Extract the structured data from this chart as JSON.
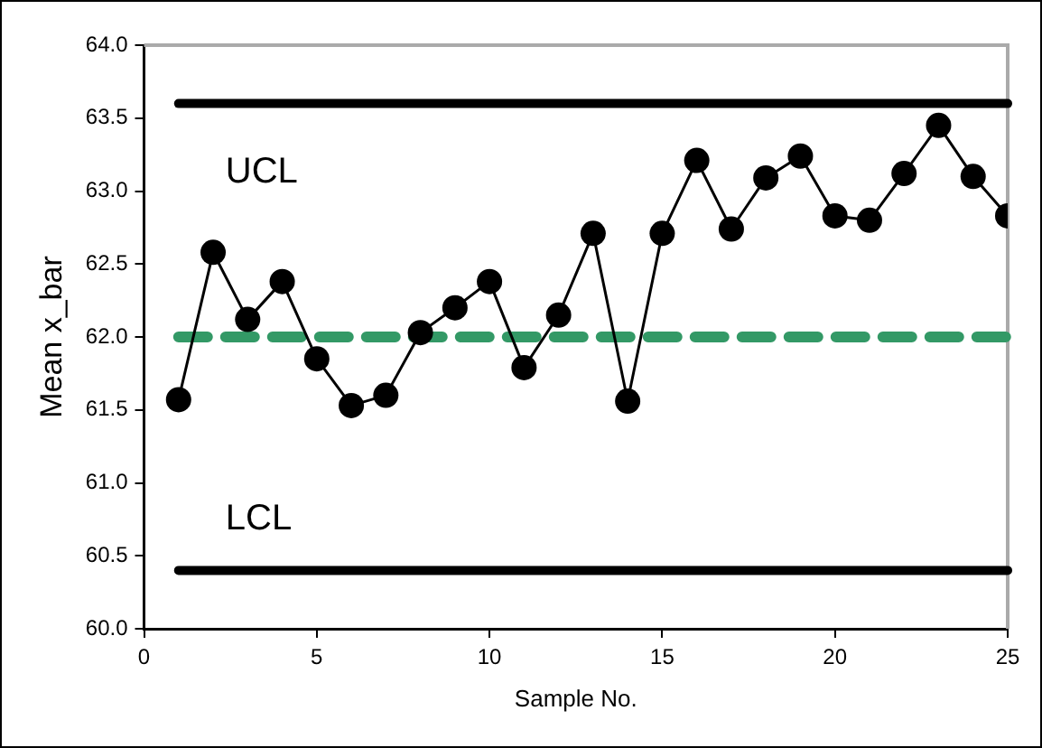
{
  "chart_data": {
    "type": "line",
    "xlabel": "Sample No.",
    "ylabel": "Mean x_bar",
    "x": [
      1,
      2,
      3,
      4,
      5,
      6,
      7,
      8,
      9,
      10,
      11,
      12,
      13,
      14,
      15,
      16,
      17,
      18,
      19,
      20,
      21,
      22,
      23,
      24,
      25
    ],
    "series": [
      {
        "color": "#000000",
        "values": [
          61.57,
          62.58,
          62.12,
          62.38,
          61.85,
          61.53,
          61.6,
          62.03,
          62.2,
          62.38,
          61.79,
          62.15,
          62.71,
          61.56,
          62.71,
          63.21,
          62.74,
          63.09,
          63.24,
          62.83,
          62.8,
          63.12,
          63.45,
          63.1,
          62.83
        ]
      }
    ],
    "xlim": [
      0,
      25
    ],
    "xticks": [
      0,
      5,
      10,
      15,
      20,
      25
    ],
    "ylim": [
      60,
      64
    ],
    "yticks": [
      {
        "value": 60,
        "label": "60.0"
      },
      {
        "value": 60.5,
        "label": "60.5"
      },
      {
        "value": 61,
        "label": "61.0"
      },
      {
        "value": 61.5,
        "label": "61.5"
      },
      {
        "value": 62,
        "label": "62.0"
      },
      {
        "value": 62.5,
        "label": "62.5"
      },
      {
        "value": 63,
        "label": "63.0"
      },
      {
        "value": 63.5,
        "label": "63.5"
      },
      {
        "value": 64,
        "label": "64.0"
      }
    ],
    "ref_lines": [
      {
        "axis": "y",
        "value": 63.6,
        "label": "UCL",
        "color": "#000000",
        "line_style": "solid"
      },
      {
        "axis": "y",
        "value": 60.4,
        "label": "LCL",
        "color": "#000000",
        "line_style": "solid"
      },
      {
        "axis": "y",
        "value": 62,
        "color": "#339966",
        "line_style": "dashed"
      }
    ],
    "marker": "circle",
    "line_style": "solid",
    "grid": false,
    "legend": false
  }
}
